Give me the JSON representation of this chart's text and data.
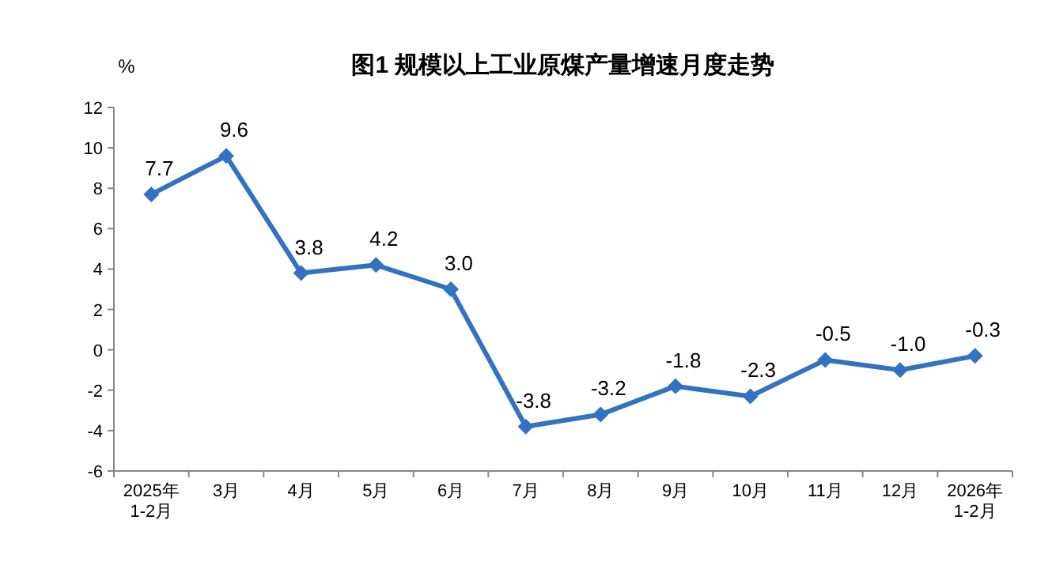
{
  "chart_data": {
    "type": "line",
    "title": "图1  规模以上工业原煤产量增速月度走势",
    "ylabel": "%",
    "categories": [
      "2025年\n1-2月",
      "3月",
      "4月",
      "5月",
      "6月",
      "7月",
      "8月",
      "9月",
      "10月",
      "11月",
      "12月",
      "2026年\n1-2月"
    ],
    "series": [
      {
        "color": "#3371c1",
        "values": [
          7.7,
          9.6,
          3.8,
          4.2,
          3.0,
          -3.8,
          -3.2,
          -1.8,
          -2.3,
          -0.5,
          -1.0,
          -0.3
        ]
      }
    ],
    "ylim": [
      -6,
      12
    ],
    "yticks": [
      -6,
      -4,
      -2,
      0,
      2,
      4,
      6,
      8,
      10,
      12
    ],
    "value_labels": [
      "7.7",
      "9.6",
      "3.8",
      "4.2",
      "3.0",
      "-3.8",
      "-3.2",
      "-1.8",
      "-2.3",
      "-0.5",
      "-1.0",
      "-0.3"
    ],
    "marker": "diamond",
    "line_style": "solid",
    "grid": false
  }
}
